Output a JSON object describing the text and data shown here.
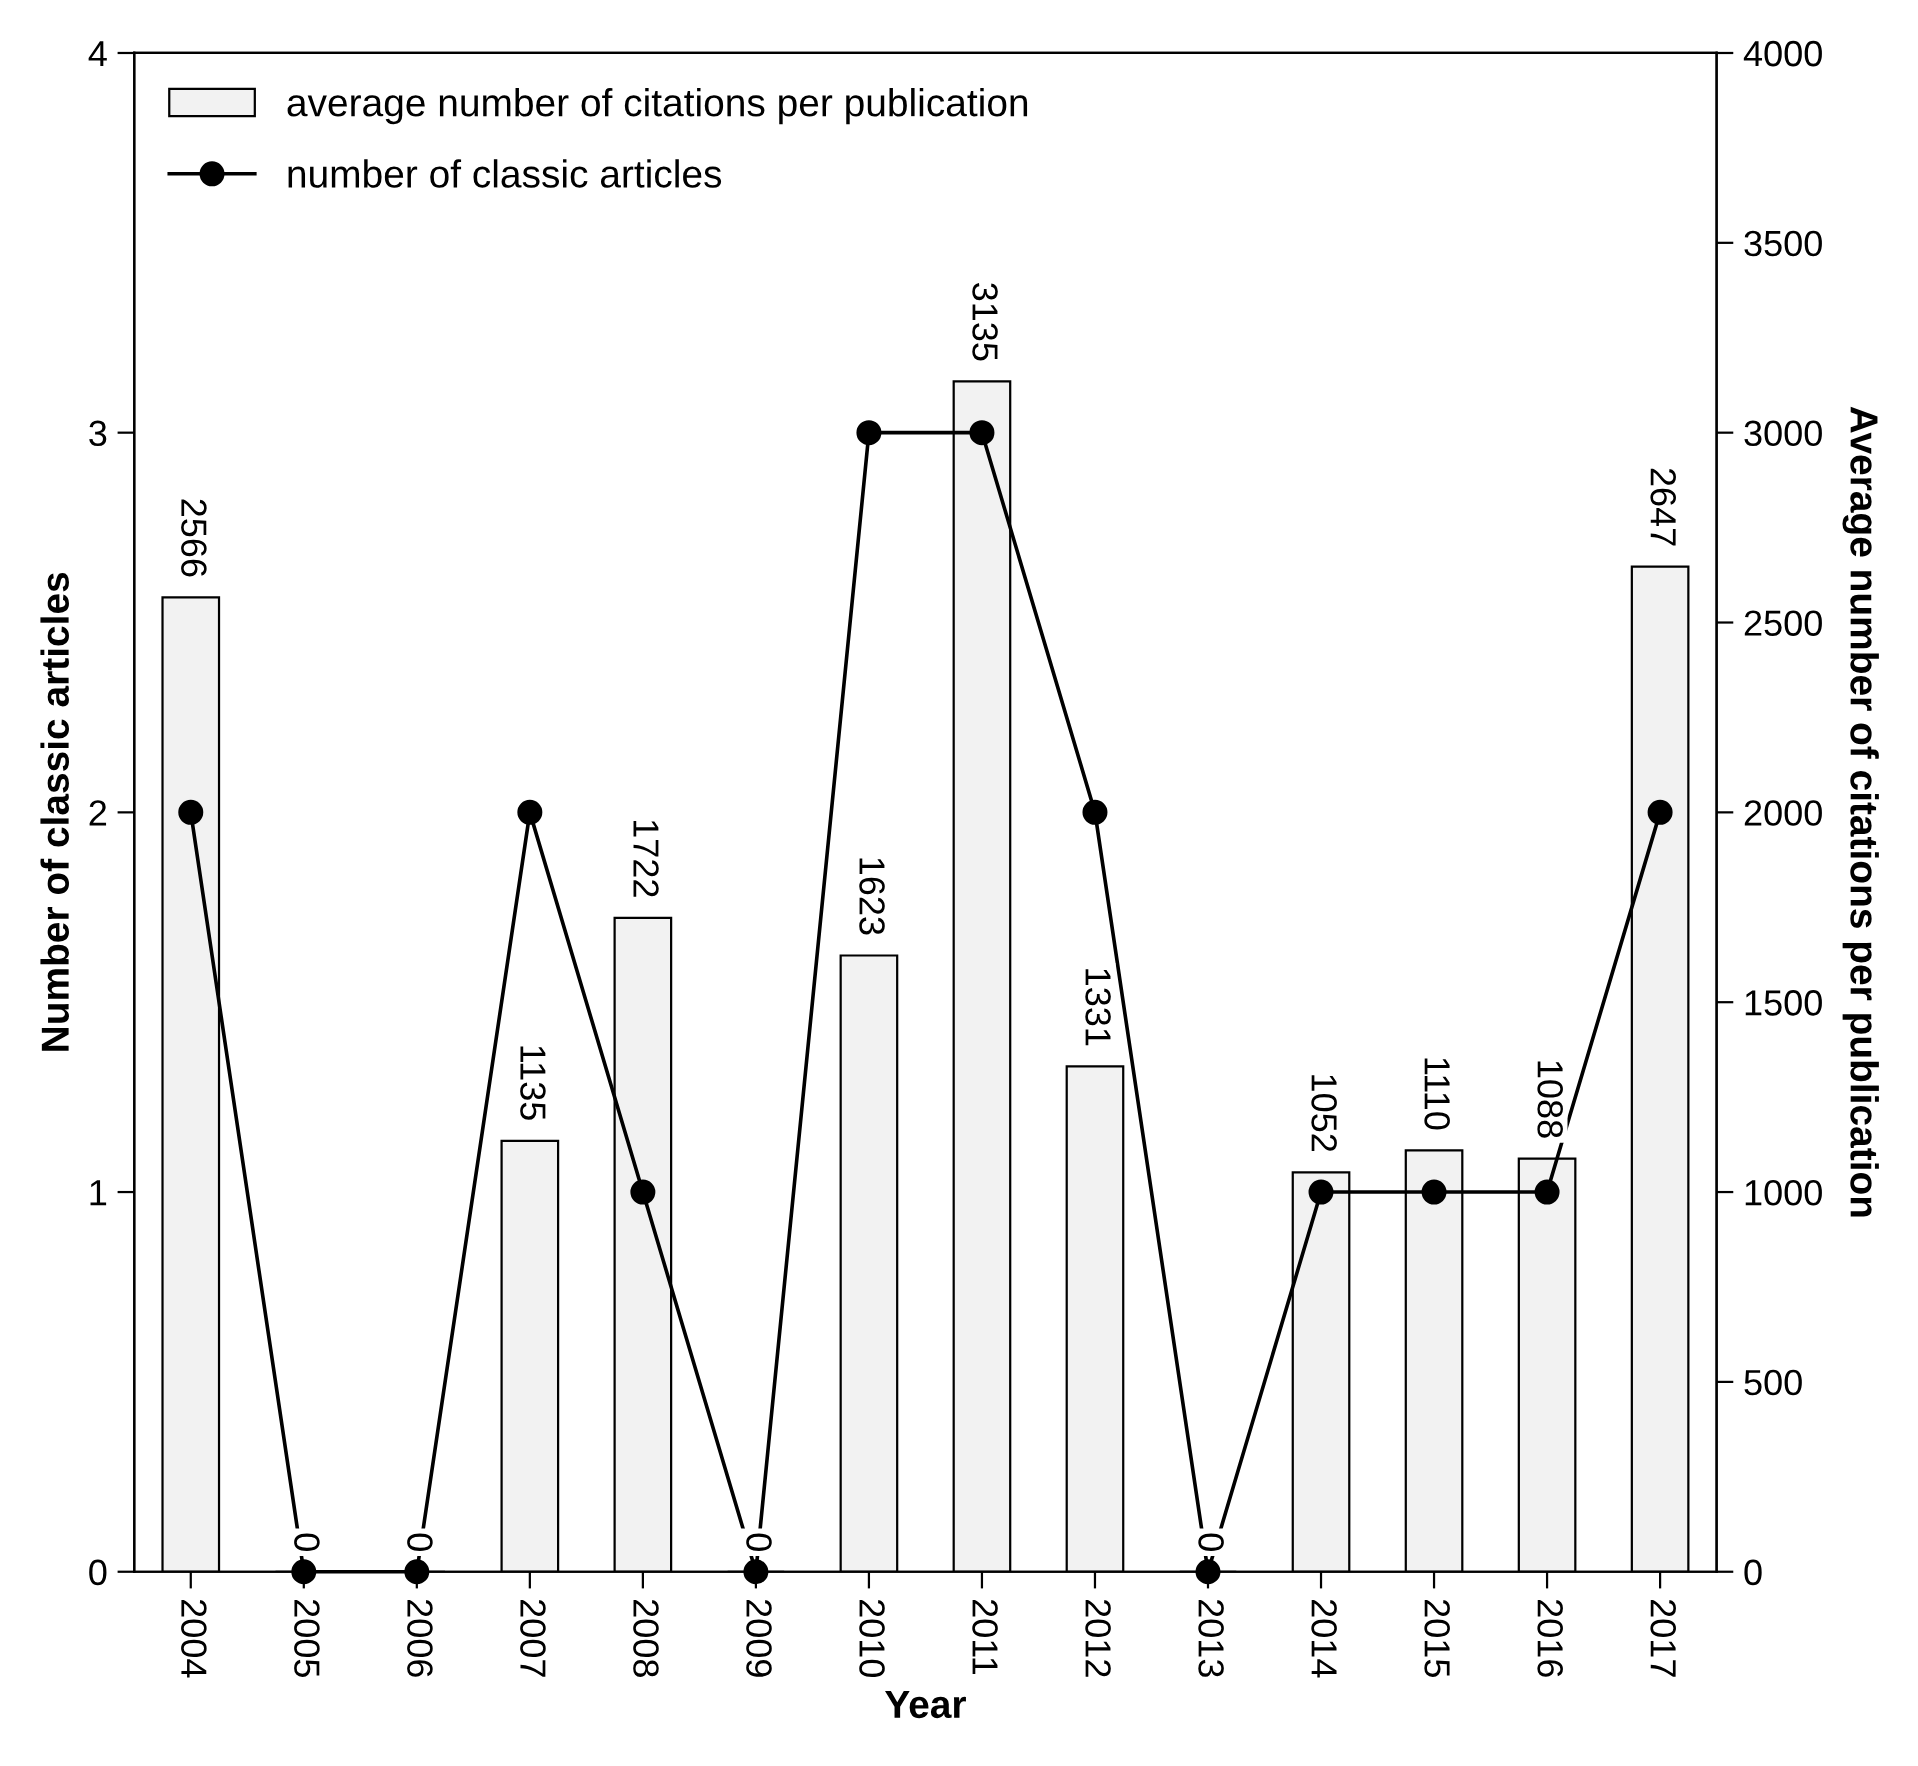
{
  "chart_data": {
    "type": "bar",
    "xlabel": "Year",
    "ylabel": "Number of classic articles",
    "y2label": "Average number of citations per publication",
    "categories": [
      "2004",
      "2005",
      "2006",
      "2007",
      "2008",
      "2009",
      "2010",
      "2011",
      "2012",
      "2013",
      "2014",
      "2015",
      "2016",
      "2017"
    ],
    "series": [
      {
        "name": "average number of citations per publication",
        "axis": "y2",
        "color": "#f2f2f2",
        "values": [
          2566,
          0,
          0,
          1135,
          1722,
          0,
          1623,
          3135,
          1331,
          0,
          1052,
          1110,
          1088,
          2647
        ],
        "value_labels": [
          "2566",
          "0",
          "0",
          "1135",
          "1722",
          "0",
          "1623",
          "3135",
          "1331",
          "0",
          "1052",
          "1110",
          "1088",
          "2647"
        ]
      },
      {
        "name": "number of classic articles",
        "type": "line",
        "axis": "y",
        "color": "#000000",
        "marker": "circle",
        "values": [
          2,
          0,
          0,
          2,
          1,
          0,
          3,
          3,
          2,
          0,
          1,
          1,
          1,
          2
        ]
      }
    ],
    "ylim": [
      0,
      4
    ],
    "yticks": [
      0,
      1,
      2,
      3,
      4
    ],
    "y2lim": [
      0,
      4000
    ],
    "y2ticks": [
      0,
      500,
      1000,
      1500,
      2000,
      2500,
      3000,
      3500,
      4000
    ],
    "grid": false,
    "legend": "top left"
  }
}
